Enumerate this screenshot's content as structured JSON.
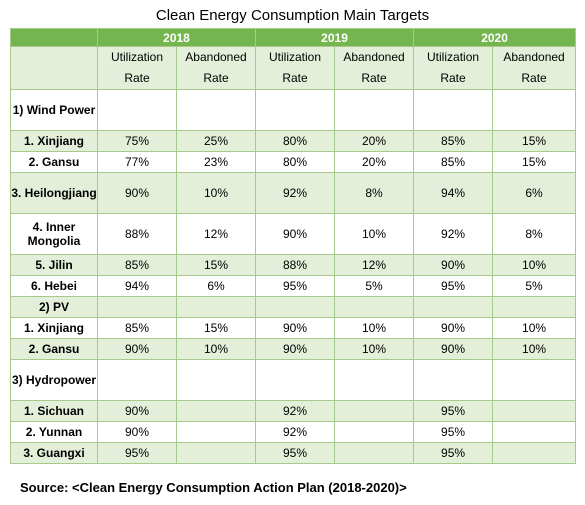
{
  "title": "Clean Energy Consumption Main Targets",
  "years": [
    "2018",
    "2019",
    "2020"
  ],
  "subheaders": [
    "Utilization Rate",
    "Abandoned Rate"
  ],
  "rows": [
    {
      "label": "1) Wind Power",
      "values": [
        "",
        "",
        "",
        "",
        "",
        ""
      ],
      "style": "white",
      "h": 41
    },
    {
      "label": "1. Xinjiang",
      "values": [
        "75%",
        "25%",
        "80%",
        "20%",
        "85%",
        "15%"
      ],
      "style": "green",
      "h": 21
    },
    {
      "label": "2. Gansu",
      "values": [
        "77%",
        "23%",
        "80%",
        "20%",
        "85%",
        "15%"
      ],
      "style": "white",
      "h": 21
    },
    {
      "label": "3. Heilongjiang",
      "values": [
        "90%",
        "10%",
        "92%",
        "8%",
        "94%",
        "6%"
      ],
      "style": "green",
      "h": 41
    },
    {
      "label": "4. Inner Mongolia",
      "values": [
        "88%",
        "12%",
        "90%",
        "10%",
        "92%",
        "8%"
      ],
      "style": "white",
      "h": 41
    },
    {
      "label": "5. Jilin",
      "values": [
        "85%",
        "15%",
        "88%",
        "12%",
        "90%",
        "10%"
      ],
      "style": "green",
      "h": 21
    },
    {
      "label": "6. Hebei",
      "values": [
        "94%",
        "6%",
        "95%",
        "5%",
        "95%",
        "5%"
      ],
      "style": "white",
      "h": 21
    },
    {
      "label": "2) PV",
      "values": [
        "",
        "",
        "",
        "",
        "",
        ""
      ],
      "style": "green",
      "h": 21
    },
    {
      "label": "1. Xinjiang",
      "values": [
        "85%",
        "15%",
        "90%",
        "10%",
        "90%",
        "10%"
      ],
      "style": "white",
      "h": 21
    },
    {
      "label": "2. Gansu",
      "values": [
        "90%",
        "10%",
        "90%",
        "10%",
        "90%",
        "10%"
      ],
      "style": "green",
      "h": 21
    },
    {
      "label": "3) Hydropower",
      "values": [
        "",
        "",
        "",
        "",
        "",
        ""
      ],
      "style": "white",
      "h": 41
    },
    {
      "label": "1. Sichuan",
      "values": [
        "90%",
        "",
        "92%",
        "",
        "95%",
        ""
      ],
      "style": "green",
      "h": 21
    },
    {
      "label": "2. Yunnan",
      "values": [
        "90%",
        "",
        "92%",
        "",
        "95%",
        ""
      ],
      "style": "white",
      "h": 21
    },
    {
      "label": "3. Guangxi",
      "values": [
        "95%",
        "",
        "95%",
        "",
        "95%",
        ""
      ],
      "style": "green",
      "h": 21
    }
  ],
  "source": "Source: <Clean Energy Consumption Action Plan (2018-2020)>"
}
